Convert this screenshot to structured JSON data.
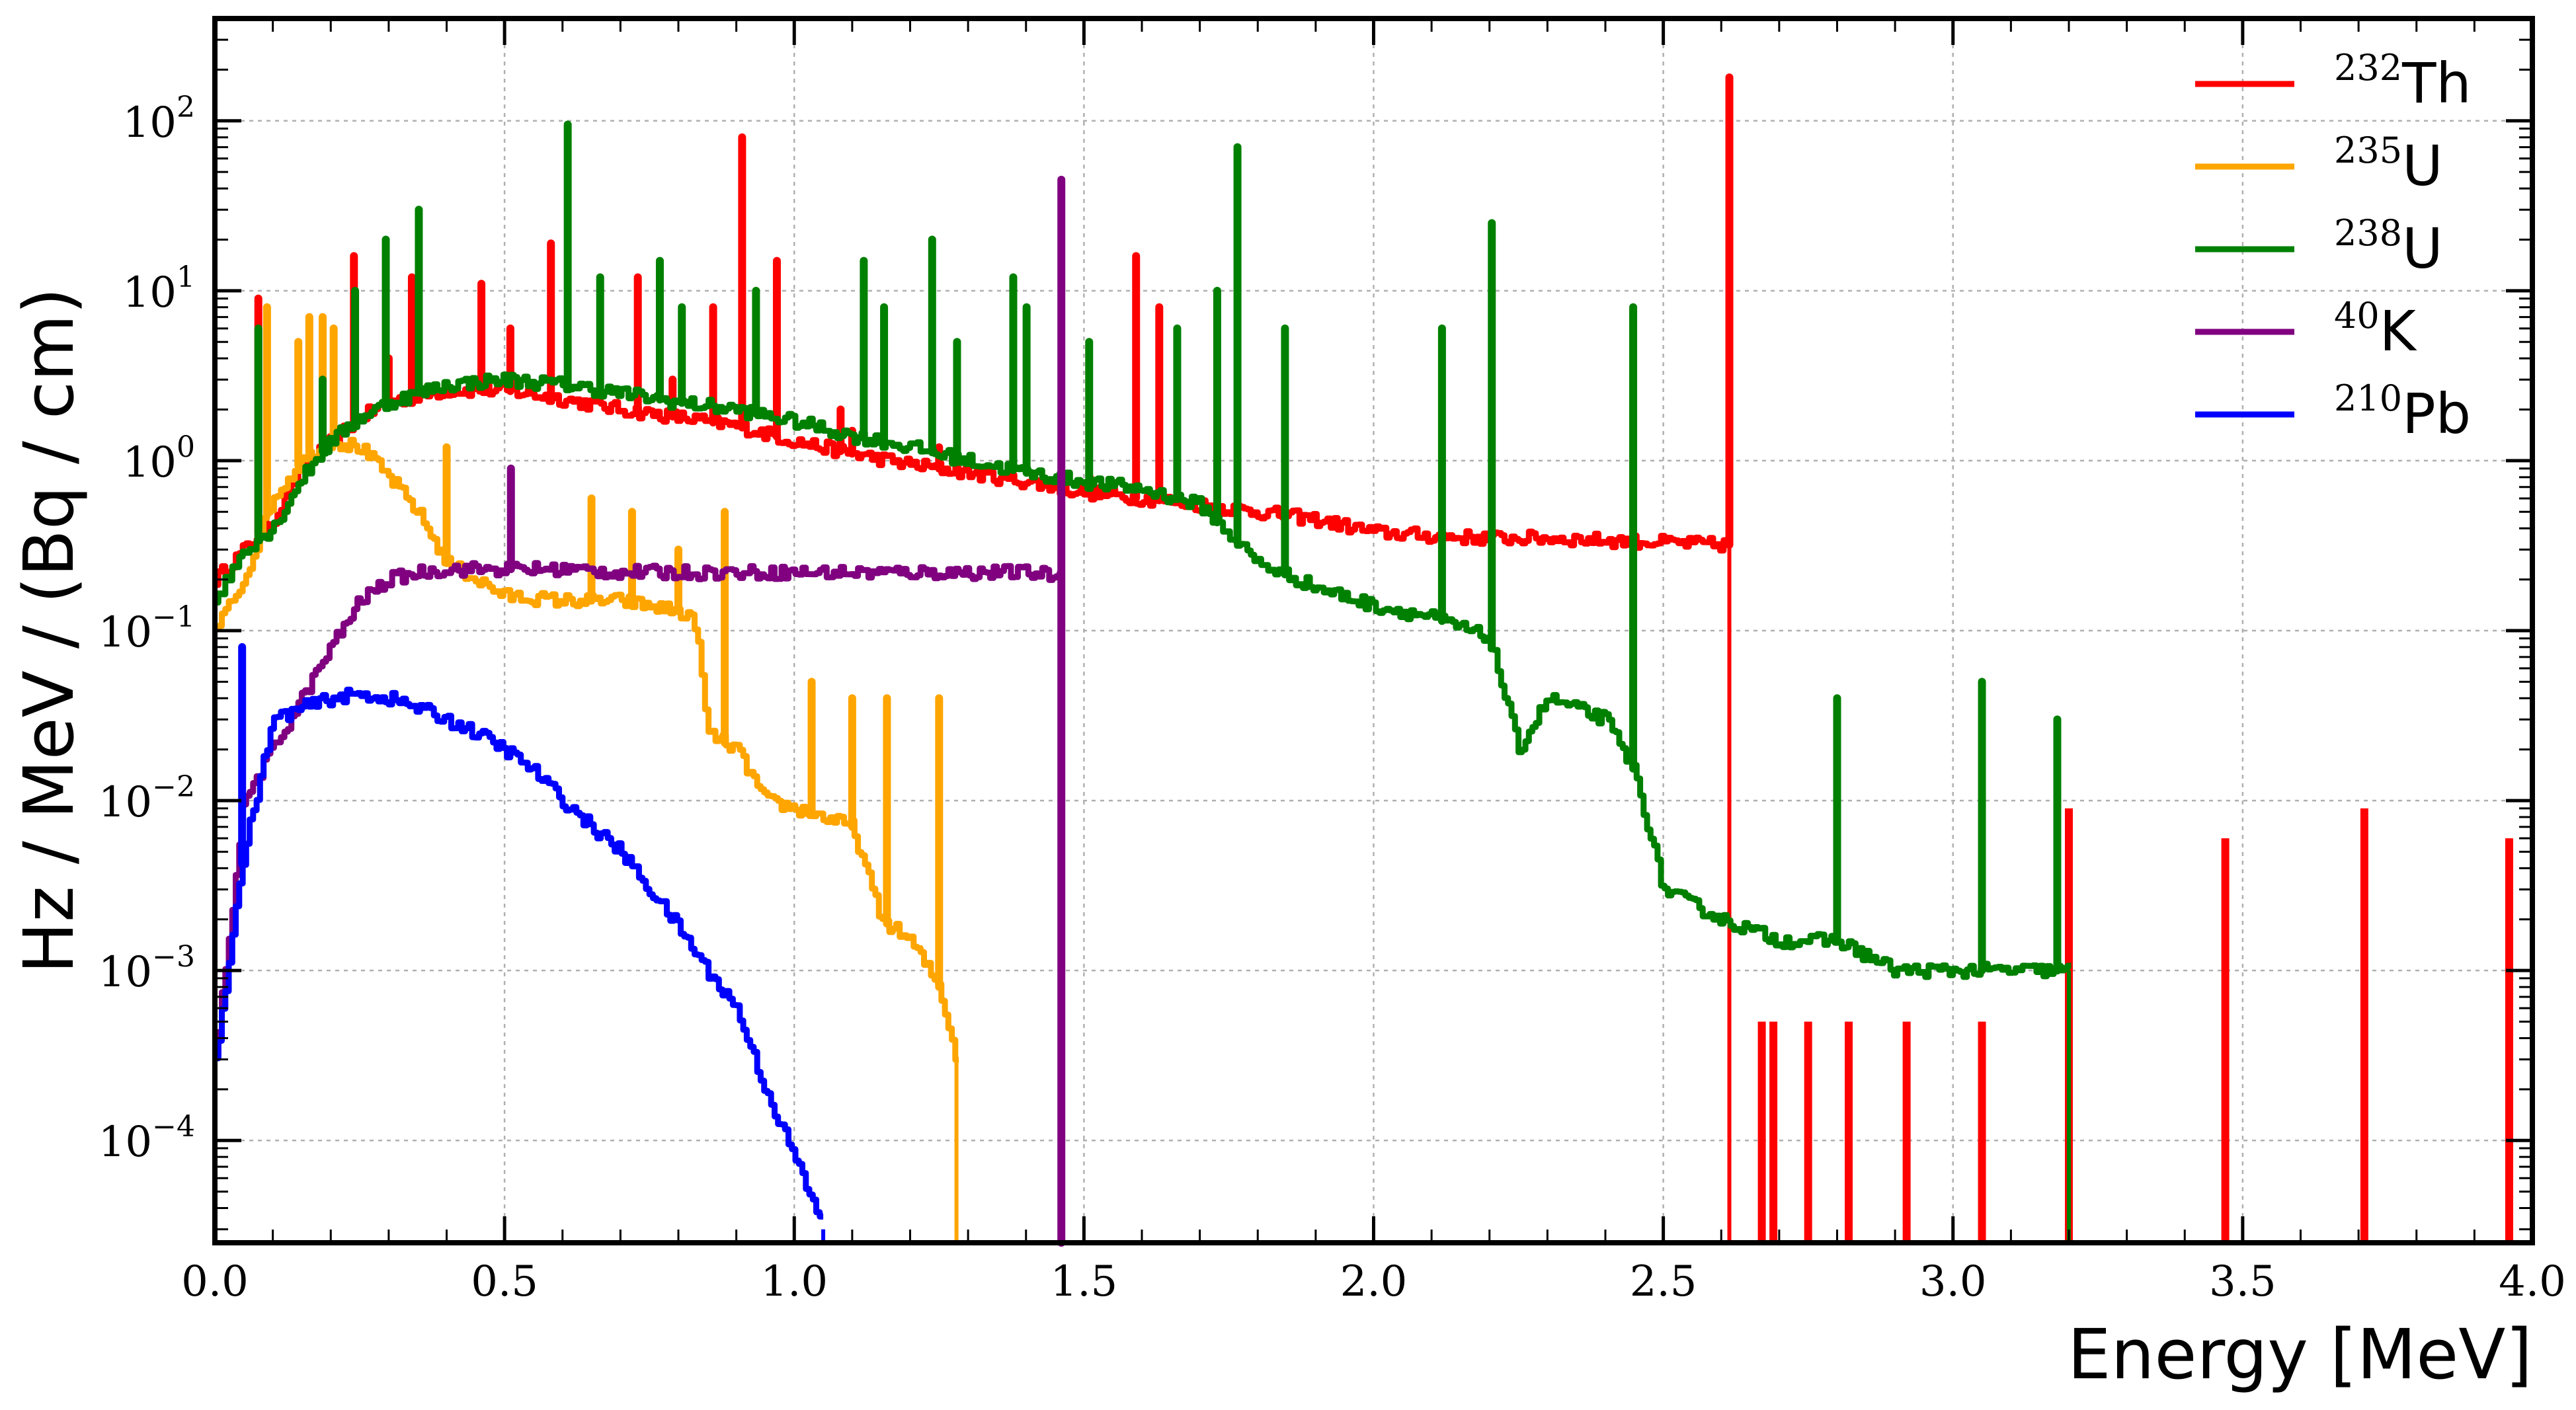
{
  "chart_data": {
    "type": "line",
    "title": "",
    "xlabel": "Energy [MeV]",
    "ylabel": "Hz / MeV / (Bq / cm)",
    "xlim": [
      0.0,
      4.0
    ],
    "ylim": [
      2.5e-05,
      400
    ],
    "yscale": "log",
    "grid": true,
    "legend_position": "top-right",
    "x_ticks": [
      {
        "value": 0.0,
        "label": "0.0"
      },
      {
        "value": 0.5,
        "label": "0.5"
      },
      {
        "value": 1.0,
        "label": "1.0"
      },
      {
        "value": 1.5,
        "label": "1.5"
      },
      {
        "value": 2.0,
        "label": "2.0"
      },
      {
        "value": 2.5,
        "label": "2.5"
      },
      {
        "value": 3.0,
        "label": "3.0"
      },
      {
        "value": 3.5,
        "label": "3.5"
      },
      {
        "value": 4.0,
        "label": "4.0"
      }
    ],
    "y_ticks": [
      {
        "value": 0.0001,
        "base": "10",
        "exp": "−4"
      },
      {
        "value": 0.001,
        "base": "10",
        "exp": "−3"
      },
      {
        "value": 0.01,
        "base": "10",
        "exp": "−2"
      },
      {
        "value": 0.1,
        "base": "10",
        "exp": "−1"
      },
      {
        "value": 1,
        "base": "10",
        "exp": "0"
      },
      {
        "value": 10,
        "base": "10",
        "exp": "1"
      },
      {
        "value": 100,
        "base": "10",
        "exp": "2"
      }
    ],
    "series": [
      {
        "name": "Th",
        "mass": "232",
        "color": "#ff0000",
        "width": 9,
        "continuum": [
          [
            0.0,
            0.2
          ],
          [
            0.05,
            0.3
          ],
          [
            0.1,
            0.45
          ],
          [
            0.15,
            0.9
          ],
          [
            0.2,
            1.3
          ],
          [
            0.25,
            1.8
          ],
          [
            0.3,
            2.2
          ],
          [
            0.35,
            2.4
          ],
          [
            0.4,
            2.6
          ],
          [
            0.5,
            2.6
          ],
          [
            0.6,
            2.3
          ],
          [
            0.7,
            2.0
          ],
          [
            0.8,
            1.8
          ],
          [
            0.9,
            1.6
          ],
          [
            1.0,
            1.3
          ],
          [
            1.1,
            1.1
          ],
          [
            1.2,
            0.95
          ],
          [
            1.3,
            0.85
          ],
          [
            1.4,
            0.75
          ],
          [
            1.5,
            0.65
          ],
          [
            1.6,
            0.6
          ],
          [
            1.7,
            0.55
          ],
          [
            1.8,
            0.5
          ],
          [
            1.9,
            0.45
          ],
          [
            2.0,
            0.38
          ],
          [
            2.1,
            0.36
          ],
          [
            2.2,
            0.35
          ],
          [
            2.3,
            0.35
          ],
          [
            2.4,
            0.34
          ],
          [
            2.5,
            0.33
          ],
          [
            2.6,
            0.32
          ],
          [
            2.614,
            0.32
          ]
        ],
        "peaks": [
          [
            0.075,
            9
          ],
          [
            0.24,
            16
          ],
          [
            0.3,
            4
          ],
          [
            0.34,
            12
          ],
          [
            0.46,
            11
          ],
          [
            0.51,
            6
          ],
          [
            0.58,
            19
          ],
          [
            0.73,
            12
          ],
          [
            0.79,
            3
          ],
          [
            0.86,
            8
          ],
          [
            0.91,
            80
          ],
          [
            0.97,
            15
          ],
          [
            1.08,
            2
          ],
          [
            1.1,
            1.5
          ],
          [
            1.25,
            1.2
          ],
          [
            1.51,
            0.8
          ],
          [
            1.59,
            16
          ],
          [
            1.63,
            8
          ],
          [
            2.614,
            180
          ]
        ],
        "tail": [
          [
            2.67,
            0.0005
          ],
          [
            2.69,
            0.0005
          ],
          [
            2.75,
            0.0005
          ],
          [
            2.82,
            0.0005
          ],
          [
            2.92,
            0.0005
          ],
          [
            3.05,
            0.0005
          ],
          [
            3.2,
            0.009
          ],
          [
            3.47,
            0.006
          ],
          [
            3.71,
            0.009
          ],
          [
            3.96,
            0.006
          ]
        ]
      },
      {
        "name": "U",
        "mass": "235",
        "color": "#ffa500",
        "width": 9,
        "continuum": [
          [
            0.0,
            0.1
          ],
          [
            0.05,
            0.2
          ],
          [
            0.1,
            0.6
          ],
          [
            0.15,
            1.0
          ],
          [
            0.2,
            1.3
          ],
          [
            0.25,
            1.2
          ],
          [
            0.3,
            0.8
          ],
          [
            0.35,
            0.5
          ],
          [
            0.4,
            0.25
          ],
          [
            0.5,
            0.16
          ],
          [
            0.6,
            0.15
          ],
          [
            0.7,
            0.15
          ],
          [
            0.8,
            0.13
          ],
          [
            0.83,
            0.11
          ],
          [
            0.85,
            0.025
          ],
          [
            0.9,
            0.02
          ],
          [
            0.95,
            0.01
          ],
          [
            1.0,
            0.009
          ],
          [
            1.05,
            0.008
          ],
          [
            1.1,
            0.007
          ],
          [
            1.15,
            0.002
          ],
          [
            1.2,
            0.0015
          ],
          [
            1.25,
            0.0008
          ],
          [
            1.28,
            0.0003
          ]
        ],
        "peaks": [
          [
            0.09,
            8
          ],
          [
            0.144,
            5
          ],
          [
            0.163,
            7
          ],
          [
            0.186,
            7
          ],
          [
            0.205,
            6
          ],
          [
            0.4,
            1.2
          ],
          [
            0.65,
            0.6
          ],
          [
            0.72,
            0.5
          ],
          [
            0.8,
            0.3
          ],
          [
            0.88,
            0.5
          ],
          [
            1.03,
            0.05
          ],
          [
            1.1,
            0.04
          ],
          [
            1.16,
            0.04
          ],
          [
            1.25,
            0.04
          ]
        ]
      },
      {
        "name": "U",
        "mass": "238",
        "color": "#008000",
        "width": 9,
        "continuum": [
          [
            0.0,
            0.15
          ],
          [
            0.05,
            0.3
          ],
          [
            0.1,
            0.4
          ],
          [
            0.15,
            0.8
          ],
          [
            0.2,
            1.3
          ],
          [
            0.25,
            1.8
          ],
          [
            0.3,
            2.2
          ],
          [
            0.35,
            2.5
          ],
          [
            0.4,
            2.8
          ],
          [
            0.5,
            3.0
          ],
          [
            0.6,
            2.8
          ],
          [
            0.7,
            2.5
          ],
          [
            0.8,
            2.2
          ],
          [
            0.9,
            2.0
          ],
          [
            1.0,
            1.7
          ],
          [
            1.1,
            1.4
          ],
          [
            1.2,
            1.2
          ],
          [
            1.3,
            1.0
          ],
          [
            1.4,
            0.85
          ],
          [
            1.5,
            0.75
          ],
          [
            1.6,
            0.68
          ],
          [
            1.7,
            0.55
          ],
          [
            1.8,
            0.25
          ],
          [
            1.9,
            0.18
          ],
          [
            2.0,
            0.14
          ],
          [
            2.1,
            0.12
          ],
          [
            2.2,
            0.09
          ],
          [
            2.25,
            0.02
          ],
          [
            2.3,
            0.04
          ],
          [
            2.4,
            0.03
          ],
          [
            2.45,
            0.015
          ],
          [
            2.5,
            0.003
          ],
          [
            2.6,
            0.002
          ],
          [
            2.7,
            0.0015
          ],
          [
            2.8,
            0.0015
          ],
          [
            2.9,
            0.001
          ],
          [
            3.0,
            0.001
          ],
          [
            3.1,
            0.001
          ],
          [
            3.2,
            0.001
          ]
        ],
        "peaks": [
          [
            0.075,
            6
          ],
          [
            0.186,
            3
          ],
          [
            0.242,
            10
          ],
          [
            0.295,
            20
          ],
          [
            0.352,
            30
          ],
          [
            0.609,
            95
          ],
          [
            0.665,
            12
          ],
          [
            0.768,
            15
          ],
          [
            0.806,
            8
          ],
          [
            0.934,
            10
          ],
          [
            1.12,
            15
          ],
          [
            1.155,
            8
          ],
          [
            1.238,
            20
          ],
          [
            1.281,
            5
          ],
          [
            1.378,
            12
          ],
          [
            1.401,
            8
          ],
          [
            1.509,
            5
          ],
          [
            1.661,
            6
          ],
          [
            1.73,
            10
          ],
          [
            1.765,
            70
          ],
          [
            1.847,
            6
          ],
          [
            2.118,
            6
          ],
          [
            2.204,
            25
          ],
          [
            2.448,
            8
          ],
          [
            2.8,
            0.04
          ],
          [
            3.05,
            0.05
          ],
          [
            3.18,
            0.03
          ]
        ]
      },
      {
        "name": "K",
        "mass": "40",
        "color": "#800080",
        "width": 9,
        "continuum": [
          [
            0.0,
            0.0003
          ],
          [
            0.05,
            0.01
          ],
          [
            0.1,
            0.02
          ],
          [
            0.15,
            0.04
          ],
          [
            0.2,
            0.08
          ],
          [
            0.25,
            0.15
          ],
          [
            0.3,
            0.2
          ],
          [
            0.35,
            0.22
          ],
          [
            0.4,
            0.23
          ],
          [
            0.5,
            0.23
          ],
          [
            0.6,
            0.23
          ],
          [
            0.7,
            0.22
          ],
          [
            0.8,
            0.22
          ],
          [
            0.9,
            0.22
          ],
          [
            1.0,
            0.22
          ],
          [
            1.1,
            0.22
          ],
          [
            1.2,
            0.22
          ],
          [
            1.3,
            0.22
          ],
          [
            1.4,
            0.22
          ],
          [
            1.46,
            0.21
          ]
        ],
        "peaks": [
          [
            0.511,
            0.9
          ],
          [
            1.461,
            45
          ]
        ]
      },
      {
        "name": "Pb",
        "mass": "210",
        "color": "#0000ff",
        "width": 9,
        "continuum": [
          [
            0.0,
            0.0003
          ],
          [
            0.05,
            0.005
          ],
          [
            0.1,
            0.03
          ],
          [
            0.15,
            0.035
          ],
          [
            0.2,
            0.04
          ],
          [
            0.25,
            0.042
          ],
          [
            0.3,
            0.04
          ],
          [
            0.35,
            0.035
          ],
          [
            0.4,
            0.03
          ],
          [
            0.45,
            0.025
          ],
          [
            0.5,
            0.02
          ],
          [
            0.55,
            0.015
          ],
          [
            0.6,
            0.01
          ],
          [
            0.65,
            0.007
          ],
          [
            0.7,
            0.005
          ],
          [
            0.75,
            0.003
          ],
          [
            0.8,
            0.0018
          ],
          [
            0.85,
            0.001
          ],
          [
            0.9,
            0.0006
          ],
          [
            0.95,
            0.0002
          ],
          [
            1.0,
            8e-05
          ],
          [
            1.05,
            3e-05
          ]
        ],
        "peaks": [
          [
            0.047,
            0.08
          ]
        ]
      }
    ]
  }
}
